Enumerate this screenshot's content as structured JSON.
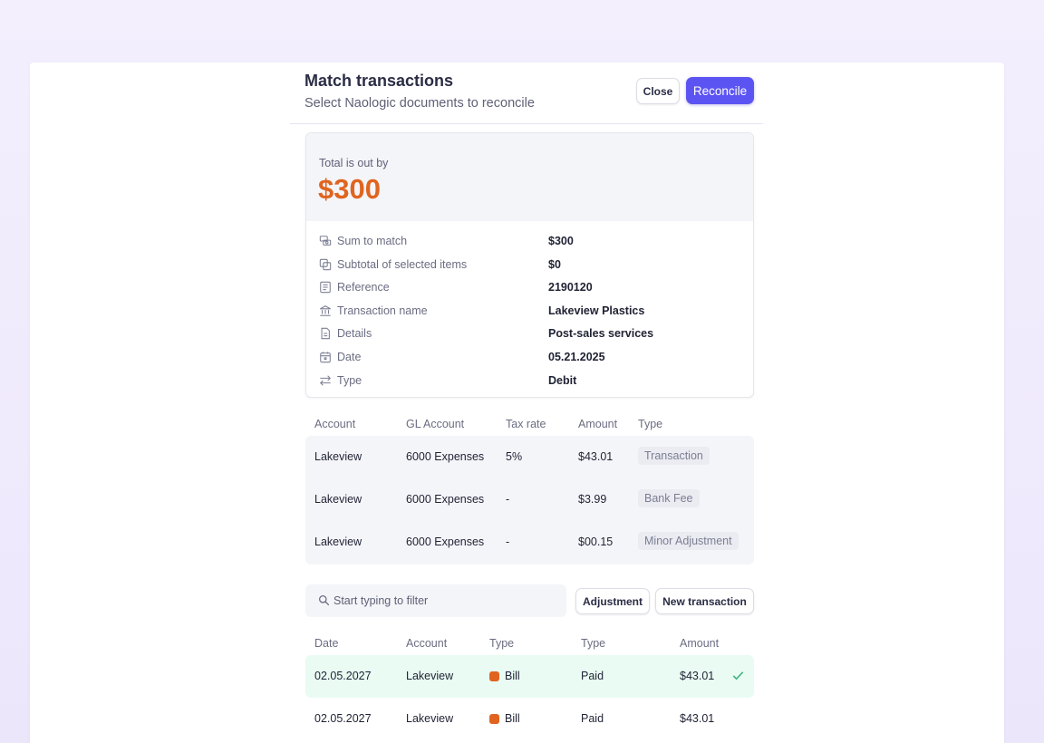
{
  "header": {
    "title": "Match transactions",
    "subtitle": "Select Naologic documents to reconcile",
    "close_label": "Close",
    "reconcile_label": "Reconcile"
  },
  "summary": {
    "out_label": "Total is out by",
    "out_value": "$300",
    "rows": [
      {
        "icon": "coins-icon",
        "label": "Sum to match",
        "value": "$300"
      },
      {
        "icon": "copy-icon",
        "label": "Subtotal of selected items",
        "value": "$0"
      },
      {
        "icon": "receipt-icon",
        "label": "Reference",
        "value": "2190120"
      },
      {
        "icon": "bank-icon",
        "label": "Transaction name",
        "value": "Lakeview Plastics"
      },
      {
        "icon": "document-icon",
        "label": "Details",
        "value": "Post-sales services"
      },
      {
        "icon": "calendar-icon",
        "label": "Date",
        "value": "05.21.2025"
      },
      {
        "icon": "transfer-icon",
        "label": "Type",
        "value": "Debit"
      }
    ]
  },
  "adjustments": {
    "columns": [
      "Account",
      "GL Account",
      "Tax rate",
      "Amount",
      "Type"
    ],
    "rows": [
      {
        "account": "Lakeview",
        "gl": "6000 Expenses",
        "tax": "5%",
        "amount": "$43.01",
        "type": "Transaction"
      },
      {
        "account": "Lakeview",
        "gl": "6000 Expenses",
        "tax": "-",
        "amount": "$3.99",
        "type": "Bank Fee"
      },
      {
        "account": "Lakeview",
        "gl": "6000 Expenses",
        "tax": "-",
        "amount": "$00.15",
        "type": "Minor Adjustment"
      }
    ]
  },
  "filter": {
    "placeholder": "Start typing to filter",
    "value": ""
  },
  "actions": {
    "adjustment_label": "Adjustment",
    "new_transaction_label": "New transaction"
  },
  "transactions": {
    "columns": [
      "Date",
      "Account",
      "Type",
      "Type",
      "Amount"
    ],
    "rows": [
      {
        "date": "02.05.2027",
        "account": "Lakeview",
        "doc_type": "Bill",
        "status": "Paid",
        "amount": "$43.01",
        "selected": true
      },
      {
        "date": "02.05.2027",
        "account": "Lakeview",
        "doc_type": "Bill",
        "status": "Paid",
        "amount": "$43.01",
        "selected": false
      }
    ]
  },
  "colors": {
    "accent": "#5c54f2",
    "out_value": "#e0641f",
    "bill_badge": "#e0641f",
    "selected_row": "#e9fbf3",
    "check": "#3cb57c"
  }
}
